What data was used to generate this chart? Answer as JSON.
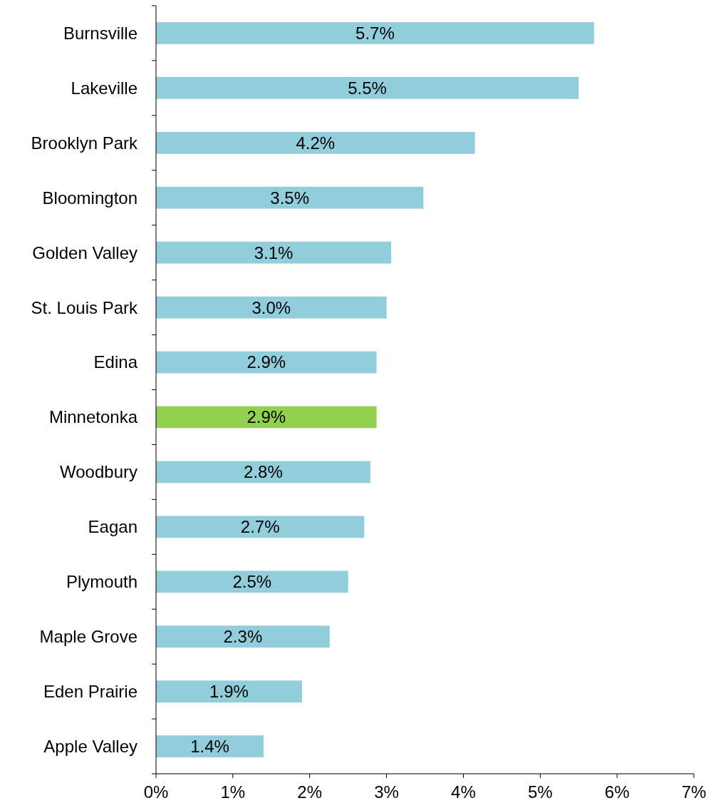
{
  "chart_data": {
    "type": "bar",
    "orientation": "horizontal",
    "categories": [
      "Burnsville",
      "Lakeville",
      "Brooklyn Park",
      "Bloomington",
      "Golden Valley",
      "St. Louis Park",
      "Edina",
      "Minnetonka",
      "Woodbury",
      "Eagan",
      "Plymouth",
      "Maple Grove",
      "Eden Prairie",
      "Apple Valley"
    ],
    "values": [
      5.7,
      5.5,
      4.15,
      3.48,
      3.06,
      3.0,
      2.87,
      2.87,
      2.79,
      2.71,
      2.5,
      2.26,
      1.9,
      1.4
    ],
    "colors": [
      "#92cddc",
      "#92cddc",
      "#92cddc",
      "#92cddc",
      "#92cddc",
      "#92cddc",
      "#92cddc",
      "#92d050",
      "#92cddc",
      "#92cddc",
      "#92cddc",
      "#92cddc",
      "#92cddc",
      "#92cddc"
    ],
    "value_labels": [
      "5.7%",
      "5.5%",
      "4.2%",
      "3.5%",
      "3.1%",
      "3.0%",
      "2.9%",
      "2.9%",
      "2.8%",
      "2.7%",
      "2.5%",
      "2.3%",
      "1.9%",
      "1.4%"
    ],
    "xlim": [
      0,
      7
    ],
    "xticks": [
      {
        "value": 0,
        "label": "0%"
      },
      {
        "value": 1,
        "label": "1%"
      },
      {
        "value": 2,
        "label": "2%"
      },
      {
        "value": 3,
        "label": "3%"
      },
      {
        "value": 4,
        "label": "4%"
      },
      {
        "value": 5,
        "label": "5%"
      },
      {
        "value": 6,
        "label": "6%"
      },
      {
        "value": 7,
        "label": "7%"
      }
    ],
    "grid": false
  }
}
